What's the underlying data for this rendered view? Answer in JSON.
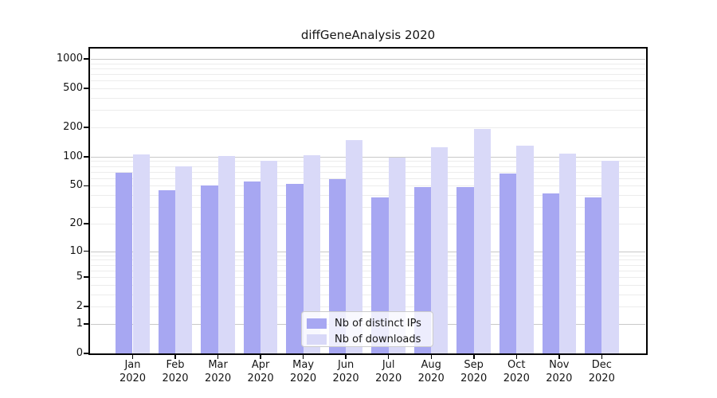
{
  "title": "diffGeneAnalysis 2020",
  "chart_data": {
    "type": "bar",
    "title": "diffGeneAnalysis 2020",
    "categories": [
      "Jan 2020",
      "Feb 2020",
      "Mar 2020",
      "Apr 2020",
      "May 2020",
      "Jun 2020",
      "Jul 2020",
      "Aug 2020",
      "Sep 2020",
      "Oct 2020",
      "Nov 2020",
      "Dec 2020"
    ],
    "series": [
      {
        "name": "Nb of distinct IPs",
        "color": "#a7a7f2",
        "values": [
          68,
          45,
          50,
          55,
          52,
          59,
          38,
          49,
          49,
          67,
          42,
          38
        ]
      },
      {
        "name": "Nb of downloads",
        "color": "#d9d9f8",
        "values": [
          105,
          79,
          102,
          90,
          104,
          147,
          97,
          126,
          192,
          131,
          108,
          90
        ]
      }
    ],
    "xlabel": "",
    "ylabel": "",
    "yscale": "log1p",
    "ylim": [
      0,
      1274
    ],
    "yticks": [
      0,
      1,
      2,
      5,
      10,
      20,
      50,
      100,
      200,
      500,
      1000
    ],
    "grid": {
      "major_color": "#c8c8c8",
      "minor_color": "#ececec",
      "minor_on": true
    },
    "legend": {
      "position": "inside-bottom-center",
      "entries": [
        "Nb of distinct IPs",
        "Nb of downloads"
      ]
    }
  },
  "colors": {
    "background": "#ffffff",
    "spine": "#000000",
    "text": "#151515",
    "bar_distinct_ips": "#a7a7f2",
    "bar_downloads": "#d9d9f8"
  }
}
